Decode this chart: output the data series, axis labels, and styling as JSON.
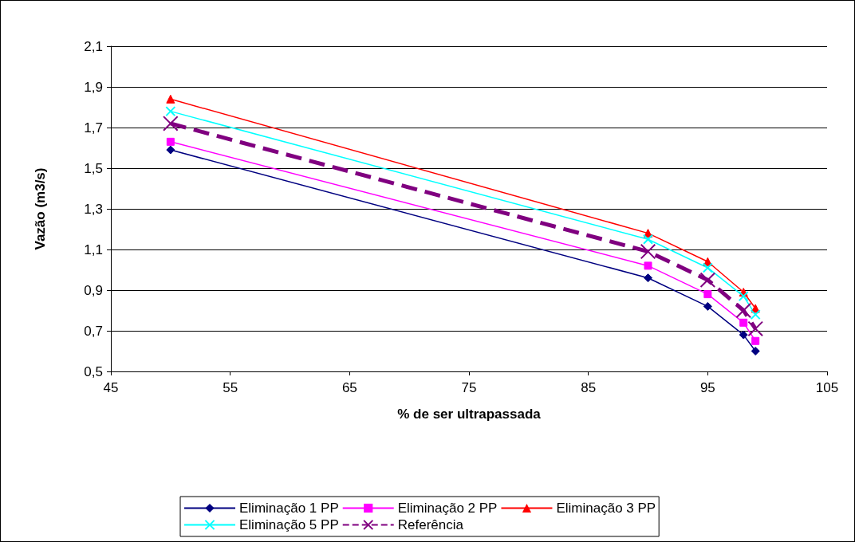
{
  "chart_data": {
    "type": "line",
    "xlabel": "% de ser ultrapassada",
    "ylabel": "Vazão (m3/s)",
    "x": [
      50,
      90,
      95,
      98,
      99
    ],
    "series": [
      {
        "name": "Eliminação 1 PP",
        "color": "#000080",
        "marker": "diamond",
        "values": [
          1.59,
          0.96,
          0.82,
          0.68,
          0.6
        ]
      },
      {
        "name": "Eliminação 2 PP",
        "color": "#ff00ff",
        "marker": "square",
        "values": [
          1.63,
          1.02,
          0.88,
          0.74,
          0.65
        ]
      },
      {
        "name": "Eliminação 3 PP",
        "color": "#ff0000",
        "marker": "triangle",
        "values": [
          1.84,
          1.18,
          1.04,
          0.89,
          0.81
        ]
      },
      {
        "name": "Eliminação 5 PP",
        "color": "#00ffff",
        "marker": "cross",
        "values": [
          1.78,
          1.15,
          1.01,
          0.87,
          0.78
        ]
      },
      {
        "name": "Referência",
        "color": "#800080",
        "marker": "cross",
        "line_style": "dashed",
        "values": [
          1.72,
          1.09,
          0.95,
          0.8,
          0.71
        ]
      }
    ],
    "xlim": [
      45,
      105
    ],
    "xticks": [
      45,
      55,
      65,
      75,
      85,
      95,
      105
    ],
    "ylim": [
      0.5,
      2.1
    ],
    "yticks": [
      {
        "value": 0.5,
        "label": "0,5"
      },
      {
        "value": 0.7,
        "label": "0,7"
      },
      {
        "value": 0.9,
        "label": "0,9"
      },
      {
        "value": 1.1,
        "label": "1,1"
      },
      {
        "value": 1.3,
        "label": "1,3"
      },
      {
        "value": 1.5,
        "label": "1,5"
      },
      {
        "value": 1.7,
        "label": "1,7"
      },
      {
        "value": 1.9,
        "label": "1,9"
      },
      {
        "value": 2.1,
        "label": "2,1"
      }
    ],
    "grid": "y",
    "legend": "bottom"
  }
}
